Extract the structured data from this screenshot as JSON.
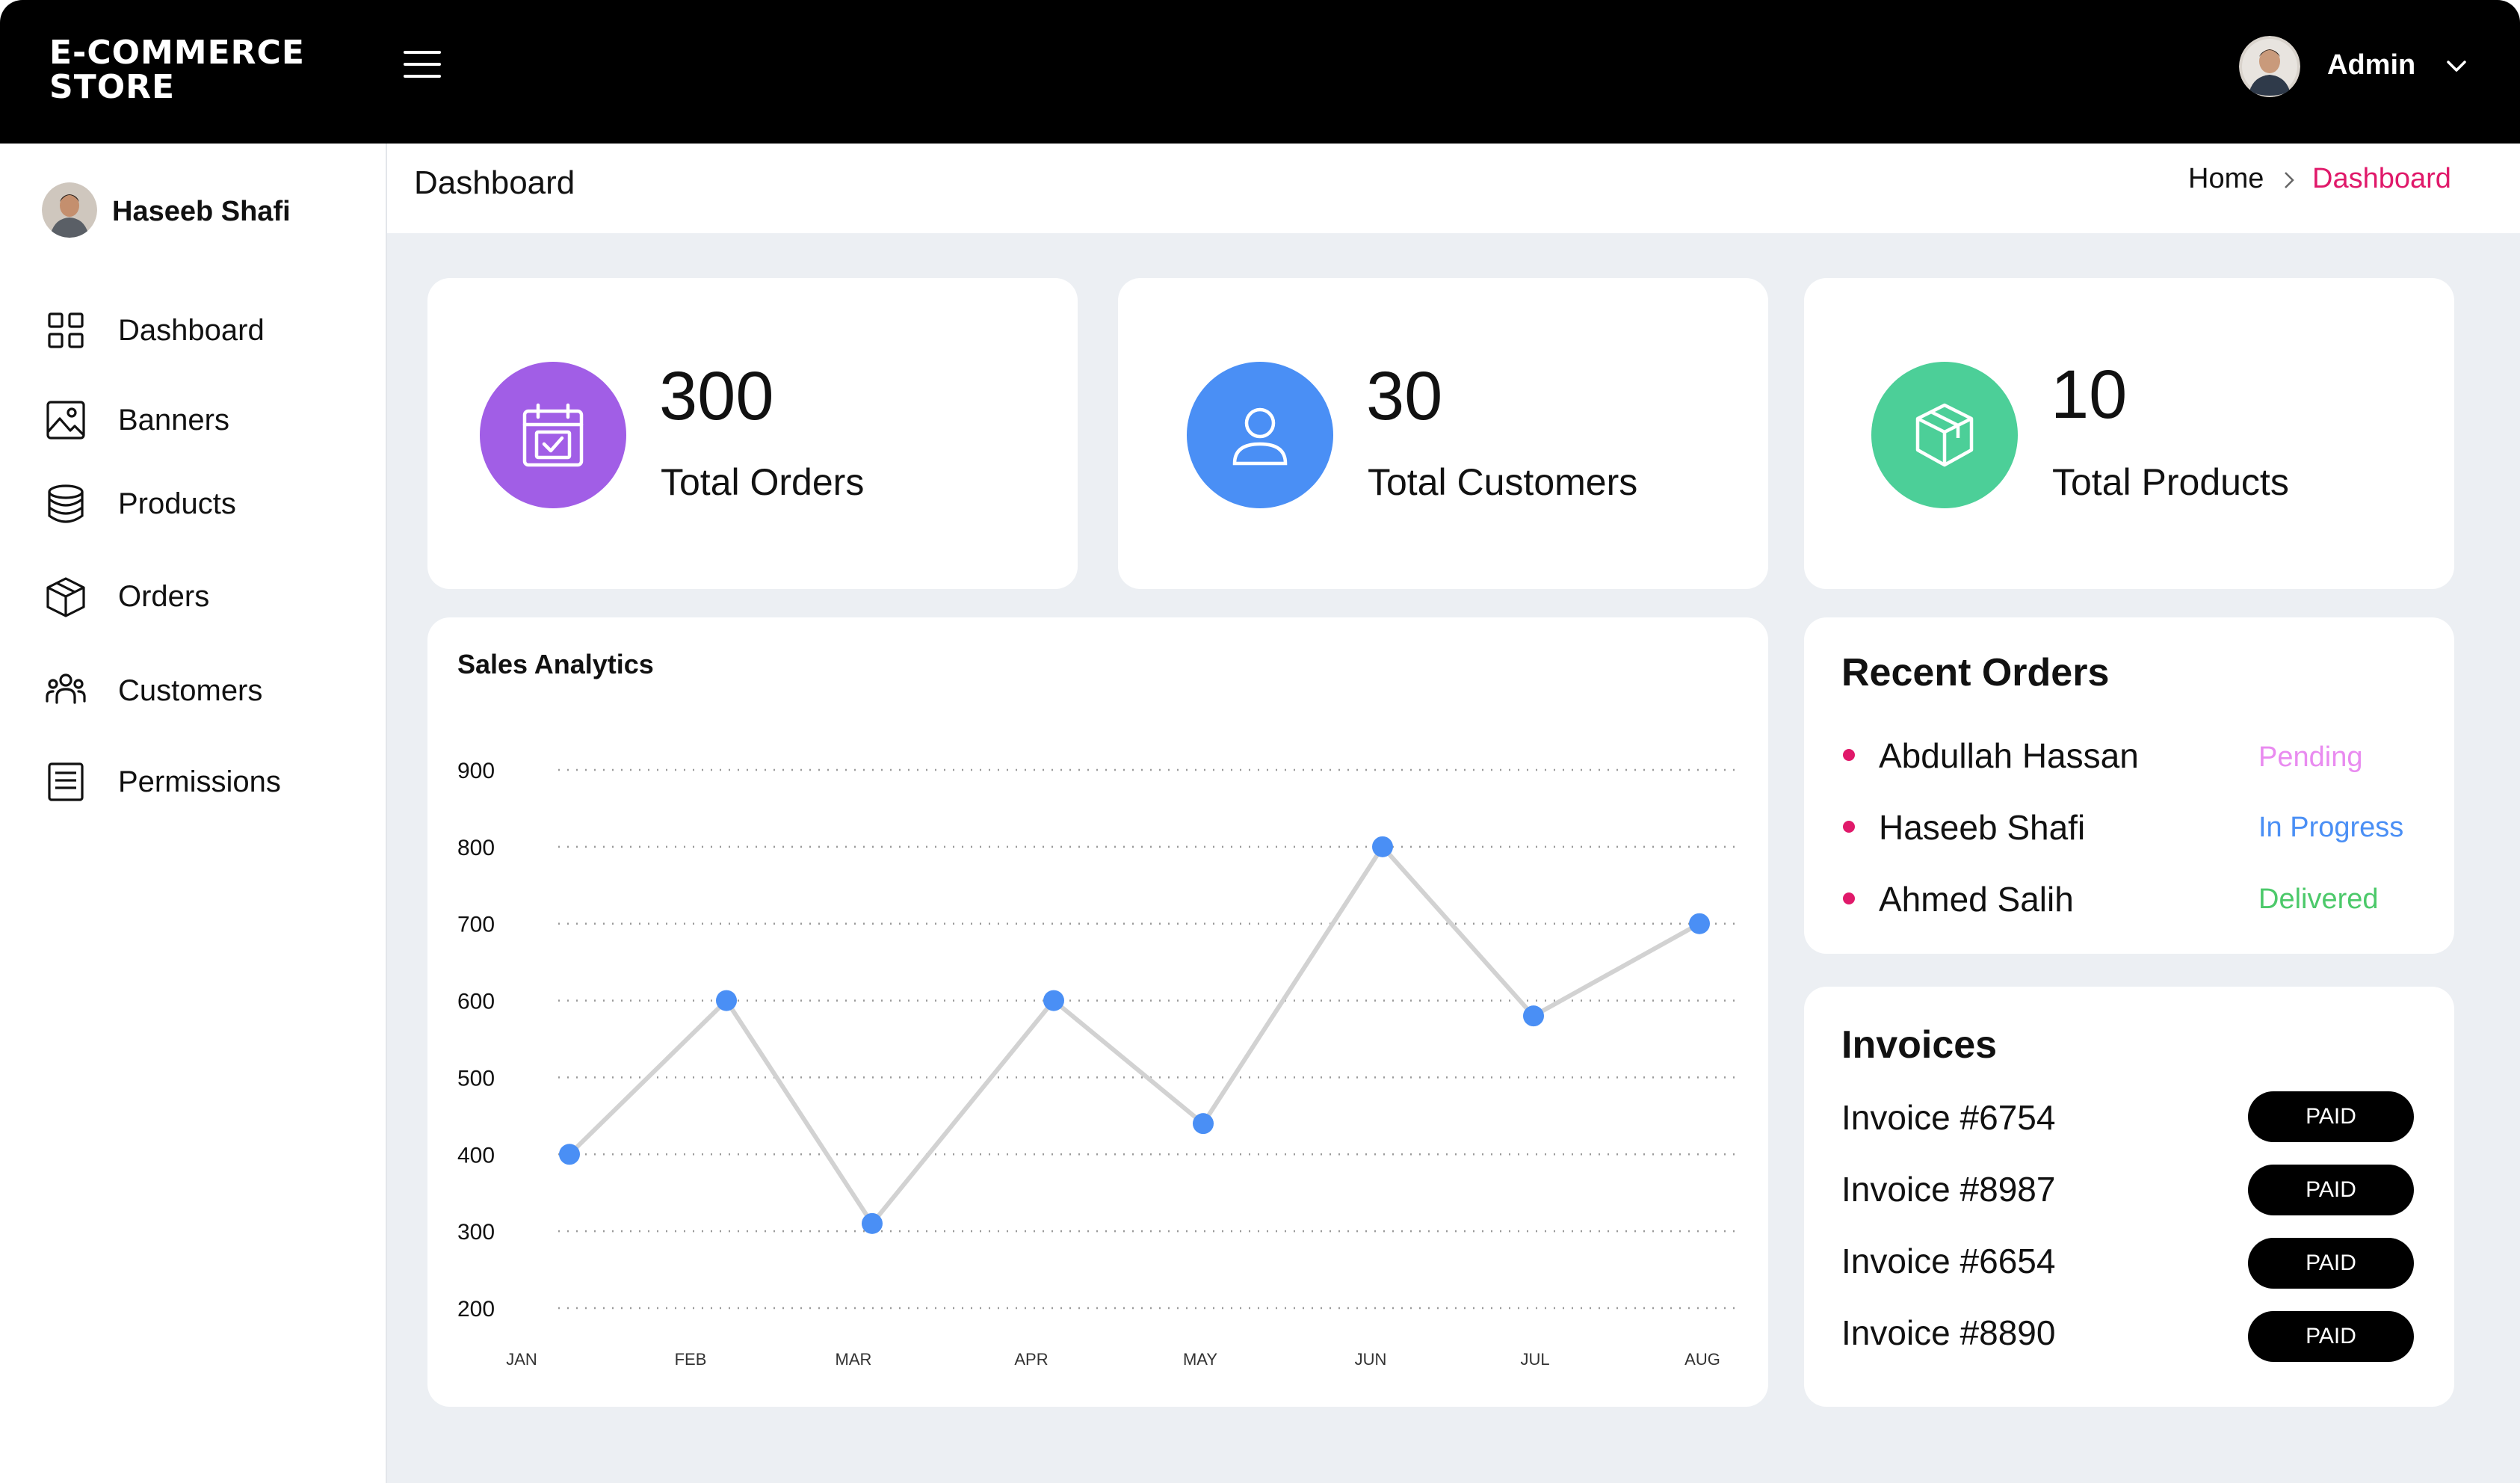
{
  "header": {
    "brand_line1": "E-COMMERCE",
    "brand_line2": "STORE",
    "menu_icon": "hamburger-menu-icon",
    "user_label": "Admin",
    "user_chevron_icon": "chevron-down-icon"
  },
  "sidebar": {
    "user_name": "Haseeb Shafi",
    "items": [
      {
        "label": "Dashboard",
        "icon": "grid-icon"
      },
      {
        "label": "Banners",
        "icon": "image-icon"
      },
      {
        "label": "Products",
        "icon": "database-stack-icon"
      },
      {
        "label": "Orders",
        "icon": "box-icon"
      },
      {
        "label": "Customers",
        "icon": "users-icon"
      },
      {
        "label": "Permissions",
        "icon": "document-list-icon"
      }
    ]
  },
  "page": {
    "title": "Dashboard",
    "breadcrumb_home": "Home",
    "breadcrumb_current": "Dashboard"
  },
  "stats": [
    {
      "value": "300",
      "label": "Total Orders",
      "icon": "calendar-check-icon",
      "color": "#a15ee6"
    },
    {
      "value": "30",
      "label": "Total Customers",
      "icon": "user-icon",
      "color": "#4a8ff5"
    },
    {
      "value": "10",
      "label": "Total Products",
      "icon": "package-icon",
      "color": "#4ccf98"
    }
  ],
  "chart_data": {
    "type": "line",
    "title": "Sales Analytics",
    "categories": [
      "JAN",
      "FEB",
      "MAR",
      "APR",
      "MAY",
      "JUN",
      "JUL",
      "AUG"
    ],
    "values": [
      400,
      600,
      310,
      600,
      440,
      800,
      580,
      700
    ],
    "yticks": [
      900,
      800,
      700,
      600,
      500,
      400,
      300,
      200
    ],
    "ylim": [
      200,
      900
    ],
    "grid": true,
    "line_color": "#d2d2d2",
    "point_color": "#4a8ff5"
  },
  "recent_orders": {
    "title": "Recent Orders",
    "items": [
      {
        "name": "Abdullah Hassan",
        "status": "Pending",
        "status_color": "#e98bf0"
      },
      {
        "name": "Haseeb Shafi",
        "status": "In Progress",
        "status_color": "#4a8ff5"
      },
      {
        "name": "Ahmed Salih",
        "status": "Delivered",
        "status_color": "#4cc96a"
      }
    ]
  },
  "invoices": {
    "title": "Invoices",
    "items": [
      {
        "name": "Invoice #6754",
        "status": "PAID"
      },
      {
        "name": "Invoice #8987",
        "status": "PAID"
      },
      {
        "name": "Invoice #6654",
        "status": "PAID"
      },
      {
        "name": "Invoice #8890",
        "status": "PAID"
      }
    ]
  }
}
